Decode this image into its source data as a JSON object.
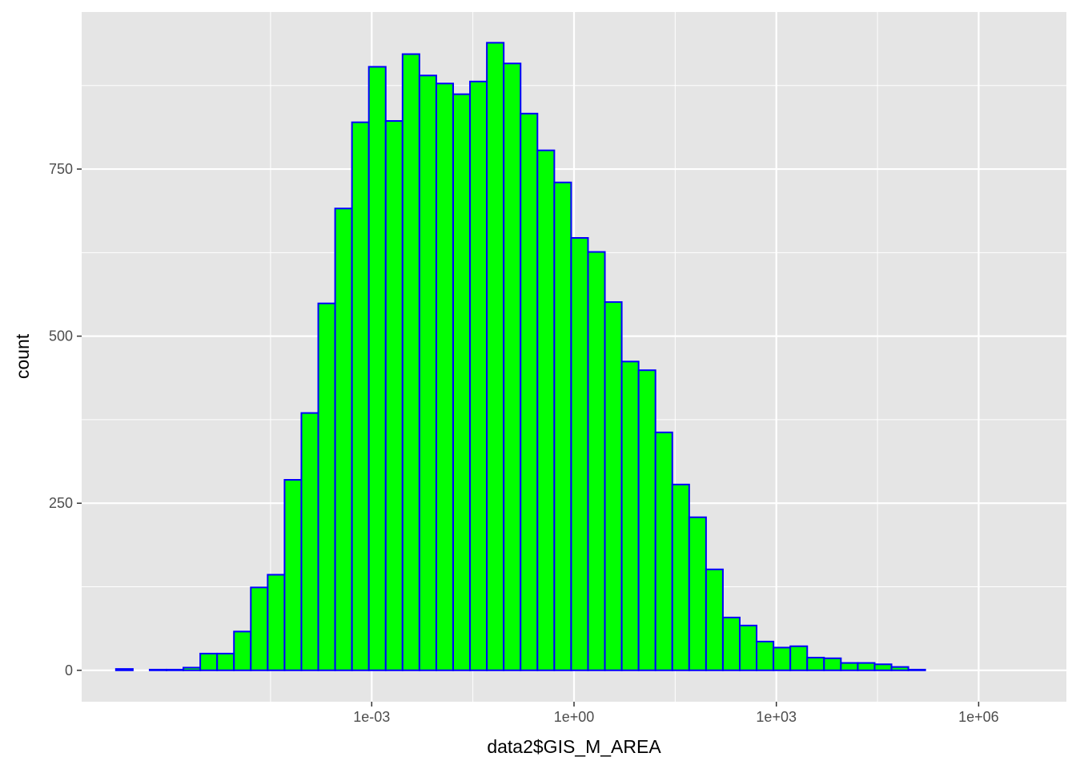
{
  "chart_data": {
    "type": "bar",
    "subtype": "histogram",
    "xlabel": "data2$GIS_M_AREA",
    "ylabel": "count",
    "x_scale": "log10",
    "x_tick_values": [
      0.001,
      1,
      1000,
      1000000
    ],
    "x_tick_labels": [
      "1e-03",
      "1e+00",
      "1e+03",
      "1e+06"
    ],
    "y_tick_values": [
      0,
      250,
      500,
      750
    ],
    "y_tick_labels": [
      "0",
      "250",
      "500",
      "750"
    ],
    "xlim": [
      5e-08,
      20000000.0
    ],
    "ylim": [
      -47,
      985
    ],
    "grid": true,
    "colors": {
      "panel": "#e5e5e5",
      "grid": "#ffffff",
      "bar_fill": "#00ff00",
      "bar_outline": "#0000ff"
    },
    "bins": {
      "first_bin_center": 2.15e-07,
      "log10_bin_width": 0.25,
      "counts": [
        2,
        0,
        1,
        1,
        4,
        25,
        25,
        58,
        124,
        143,
        285,
        385,
        549,
        691,
        820,
        903,
        822,
        922,
        890,
        878,
        862,
        881,
        939,
        908,
        833,
        778,
        730,
        647,
        626,
        551,
        462,
        449,
        356,
        278,
        229,
        151,
        79,
        67,
        43,
        34,
        36,
        19,
        18,
        11,
        11,
        9,
        5,
        1
      ]
    }
  }
}
